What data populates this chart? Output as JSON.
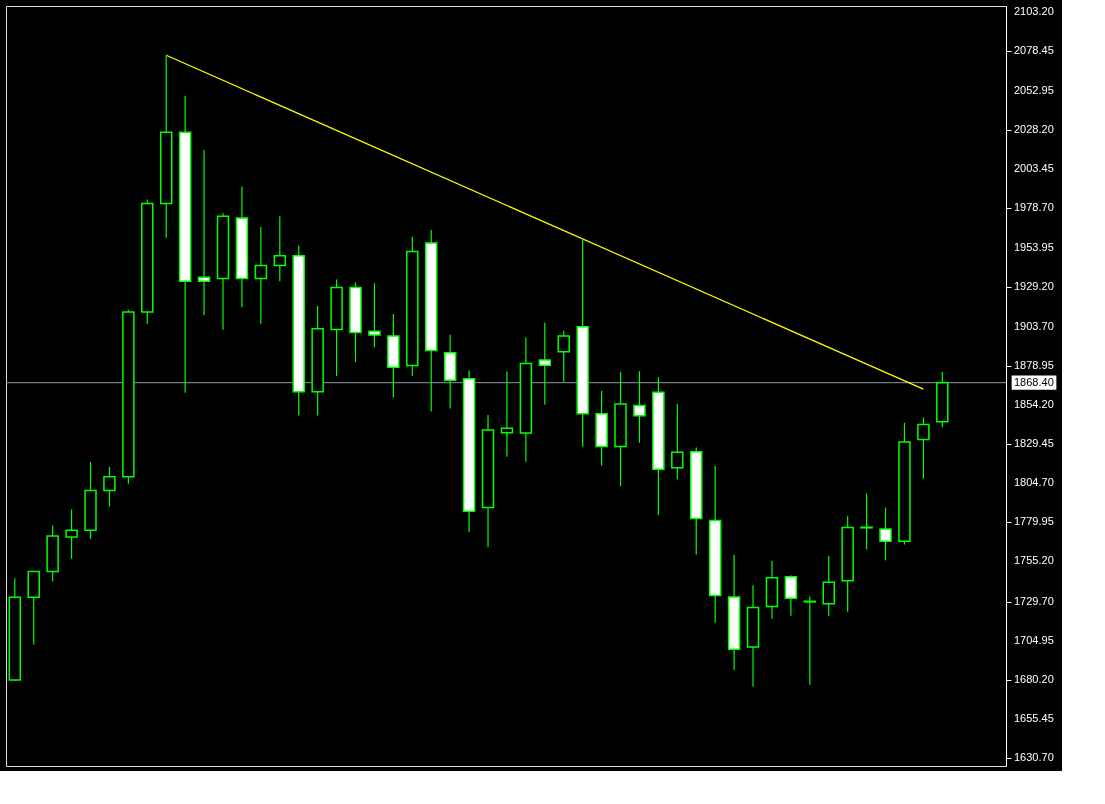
{
  "chart_data": {
    "type": "candlestick",
    "categories": [
      null,
      null,
      null,
      null,
      null,
      null,
      null,
      null,
      null,
      null,
      null,
      null,
      null,
      null,
      null,
      null,
      null,
      null,
      null,
      null,
      null,
      null,
      null,
      null,
      null,
      null,
      null,
      null,
      null,
      null,
      null,
      null,
      null,
      null,
      null,
      null,
      null,
      null,
      null,
      null,
      null,
      null,
      null,
      null,
      null,
      null,
      null,
      null,
      null,
      null
    ],
    "color": "#00ff00",
    "ohlc": [
      [
        1680.1,
        1744.5,
        1679.5,
        1732.6
      ],
      [
        1732.6,
        1748.8,
        1702.6,
        1748.8
      ],
      [
        1748.8,
        1778.2,
        1742.6,
        1771.3
      ],
      [
        1770.7,
        1788.2,
        1756.9,
        1775.0
      ],
      [
        1775.0,
        1818.2,
        1769.4,
        1800.1
      ],
      [
        1800.1,
        1815.1,
        1790.0,
        1808.8
      ],
      [
        1808.8,
        1914.5,
        1804.4,
        1913.2
      ],
      [
        1913.2,
        1984.4,
        1905.7,
        1981.9
      ],
      [
        1981.9,
        2075.7,
        1960.1,
        2026.9
      ],
      [
        2026.9,
        2050.1,
        1862.0,
        1932.6
      ],
      [
        1935.1,
        2015.7,
        1911.3,
        1932.6
      ],
      [
        1934.4,
        1975.7,
        1901.9,
        1973.8
      ],
      [
        1972.6,
        1992.6,
        1916.3,
        1934.4
      ],
      [
        1934.4,
        1966.9,
        1905.7,
        1942.6
      ],
      [
        1942.6,
        1973.8,
        1932.6,
        1948.8
      ],
      [
        1948.8,
        1955.1,
        1847.6,
        1862.6
      ],
      [
        1862.6,
        1916.9,
        1847.6,
        1902.6
      ],
      [
        1902.1,
        1933.8,
        1872.6,
        1928.6
      ],
      [
        1928.6,
        1931.9,
        1881.5,
        1900.1
      ],
      [
        1900.9,
        1931.3,
        1890.9,
        1898.6
      ],
      [
        1898.0,
        1911.9,
        1859.0,
        1878.2
      ],
      [
        1879.3,
        1960.7,
        1872.6,
        1951.5
      ],
      [
        1956.8,
        1965.1,
        1850.2,
        1888.8
      ],
      [
        1887.4,
        1898.8,
        1852.1,
        1869.9
      ],
      [
        1870.9,
        1876.3,
        1774.0,
        1787.0
      ],
      [
        1789.3,
        1848.0,
        1764.2,
        1838.4
      ],
      [
        1836.7,
        1875.5,
        1821.5,
        1839.6
      ],
      [
        1836.5,
        1897.0,
        1818.4,
        1880.5
      ],
      [
        1882.7,
        1906.3,
        1854.4,
        1879.4
      ],
      [
        1888.0,
        1901.3,
        1869.0,
        1898.0
      ],
      [
        1903.8,
        1958.8,
        1827.8,
        1848.8
      ],
      [
        1848.8,
        1863.2,
        1815.9,
        1828.0
      ],
      [
        1828.0,
        1875.1,
        1802.8,
        1854.9
      ],
      [
        1854.0,
        1875.7,
        1830.3,
        1847.4
      ],
      [
        1862.4,
        1871.9,
        1784.6,
        1813.6
      ],
      [
        1814.6,
        1854.9,
        1807.1,
        1824.3
      ],
      [
        1824.6,
        1827.4,
        1759.6,
        1782.4
      ],
      [
        1781.1,
        1815.7,
        1716.5,
        1733.6
      ],
      [
        1732.7,
        1759.4,
        1686.5,
        1699.6
      ],
      [
        1701.1,
        1740.1,
        1676.1,
        1726.1
      ],
      [
        1726.7,
        1755.7,
        1719.0,
        1744.9
      ],
      [
        1745.5,
        1746.5,
        1720.9,
        1731.9
      ],
      [
        1730.0,
        1733.0,
        1677.1,
        1729.6
      ],
      [
        1728.4,
        1758.8,
        1720.5,
        1742.1
      ],
      [
        1743.0,
        1783.8,
        1723.4,
        1776.7
      ],
      [
        1776.5,
        1798.2,
        1762.8,
        1776.9
      ],
      [
        1775.7,
        1789.3,
        1755.9,
        1768.0
      ],
      [
        1768.0,
        1843.0,
        1765.9,
        1830.9
      ],
      [
        1832.4,
        1846.3,
        1807.8,
        1841.9
      ],
      [
        1843.6,
        1875.1,
        1840.2,
        1868.4
      ]
    ],
    "series": [
      {
        "type": "line",
        "color": "#ffff00",
        "values": [
          null,
          null,
          null,
          null,
          null,
          null,
          null,
          null,
          2075.7,
          null,
          null,
          null,
          null,
          null,
          null,
          null,
          null,
          null,
          null,
          null,
          null,
          null,
          null,
          null,
          null,
          null,
          null,
          null,
          null,
          null,
          null,
          null,
          null,
          null,
          null,
          null,
          null,
          null,
          null,
          null,
          null,
          null,
          null,
          null,
          null,
          null,
          null,
          null,
          1864.3,
          null
        ]
      }
    ],
    "ref_lines": [
      {
        "axis": "y",
        "value": 1868.4,
        "label": "1868.40",
        "color": "#8c96a6"
      }
    ],
    "ylim": [
      1625.7,
      2106.9
    ],
    "yticks": [
      {
        "value": 2103.2,
        "label": "2103.20"
      },
      {
        "value": 2078.45,
        "label": "2078.45"
      },
      {
        "value": 2052.95,
        "label": "2052.95"
      },
      {
        "value": 2028.2,
        "label": "2028.20"
      },
      {
        "value": 2003.45,
        "label": "2003.45"
      },
      {
        "value": 1978.7,
        "label": "1978.70"
      },
      {
        "value": 1953.95,
        "label": "1953.95"
      },
      {
        "value": 1929.2,
        "label": "1929.20"
      },
      {
        "value": 1903.7,
        "label": "1903.70"
      },
      {
        "value": 1878.95,
        "label": "1878.95"
      },
      {
        "value": 1854.2,
        "label": "1854.20"
      },
      {
        "value": 1829.45,
        "label": "1829.45"
      },
      {
        "value": 1804.7,
        "label": "1804.70"
      },
      {
        "value": 1779.95,
        "label": "1779.95"
      },
      {
        "value": 1755.2,
        "label": "1755.20"
      },
      {
        "value": 1729.7,
        "label": "1729.70"
      },
      {
        "value": 1704.95,
        "label": "1704.95"
      },
      {
        "value": 1680.2,
        "label": "1680.20"
      },
      {
        "value": 1655.45,
        "label": "1655.45"
      },
      {
        "value": 1630.7,
        "label": "1630.70"
      }
    ],
    "grid": false,
    "tick_labels": "y"
  }
}
